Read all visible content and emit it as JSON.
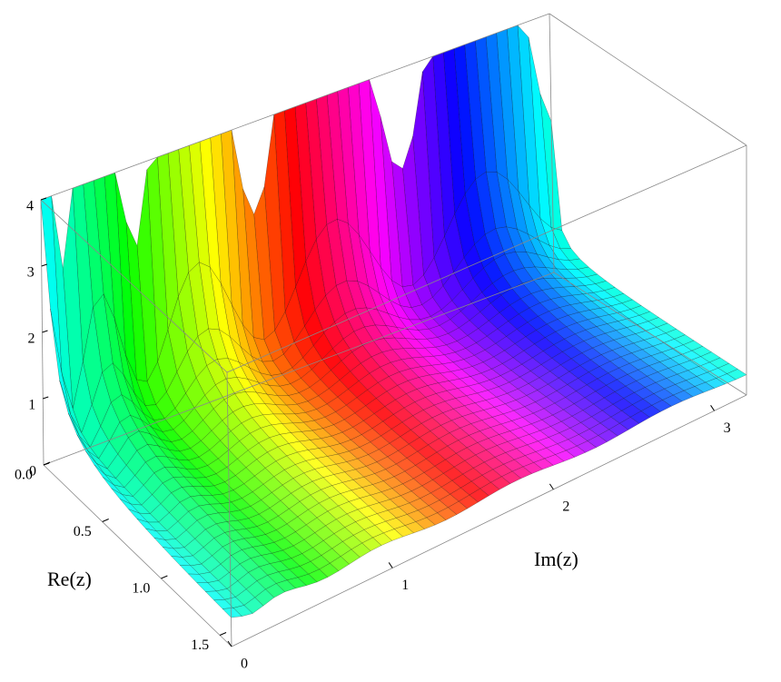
{
  "chart_data": {
    "type": "surface3d",
    "x_label": "Im(z)",
    "xlim": [
      0,
      3.2
    ],
    "xticks": [
      0,
      1,
      2,
      3
    ],
    "y_label": "Re(z)",
    "ylim": [
      0,
      1.6
    ],
    "yticks": [
      {
        "value": 0,
        "label": "0.0"
      },
      0.5,
      {
        "value": 1,
        "label": "1.0"
      },
      1.5
    ],
    "zlim": [
      0,
      4
    ],
    "zticks": [
      0,
      1,
      2,
      3,
      4
    ]
  }
}
